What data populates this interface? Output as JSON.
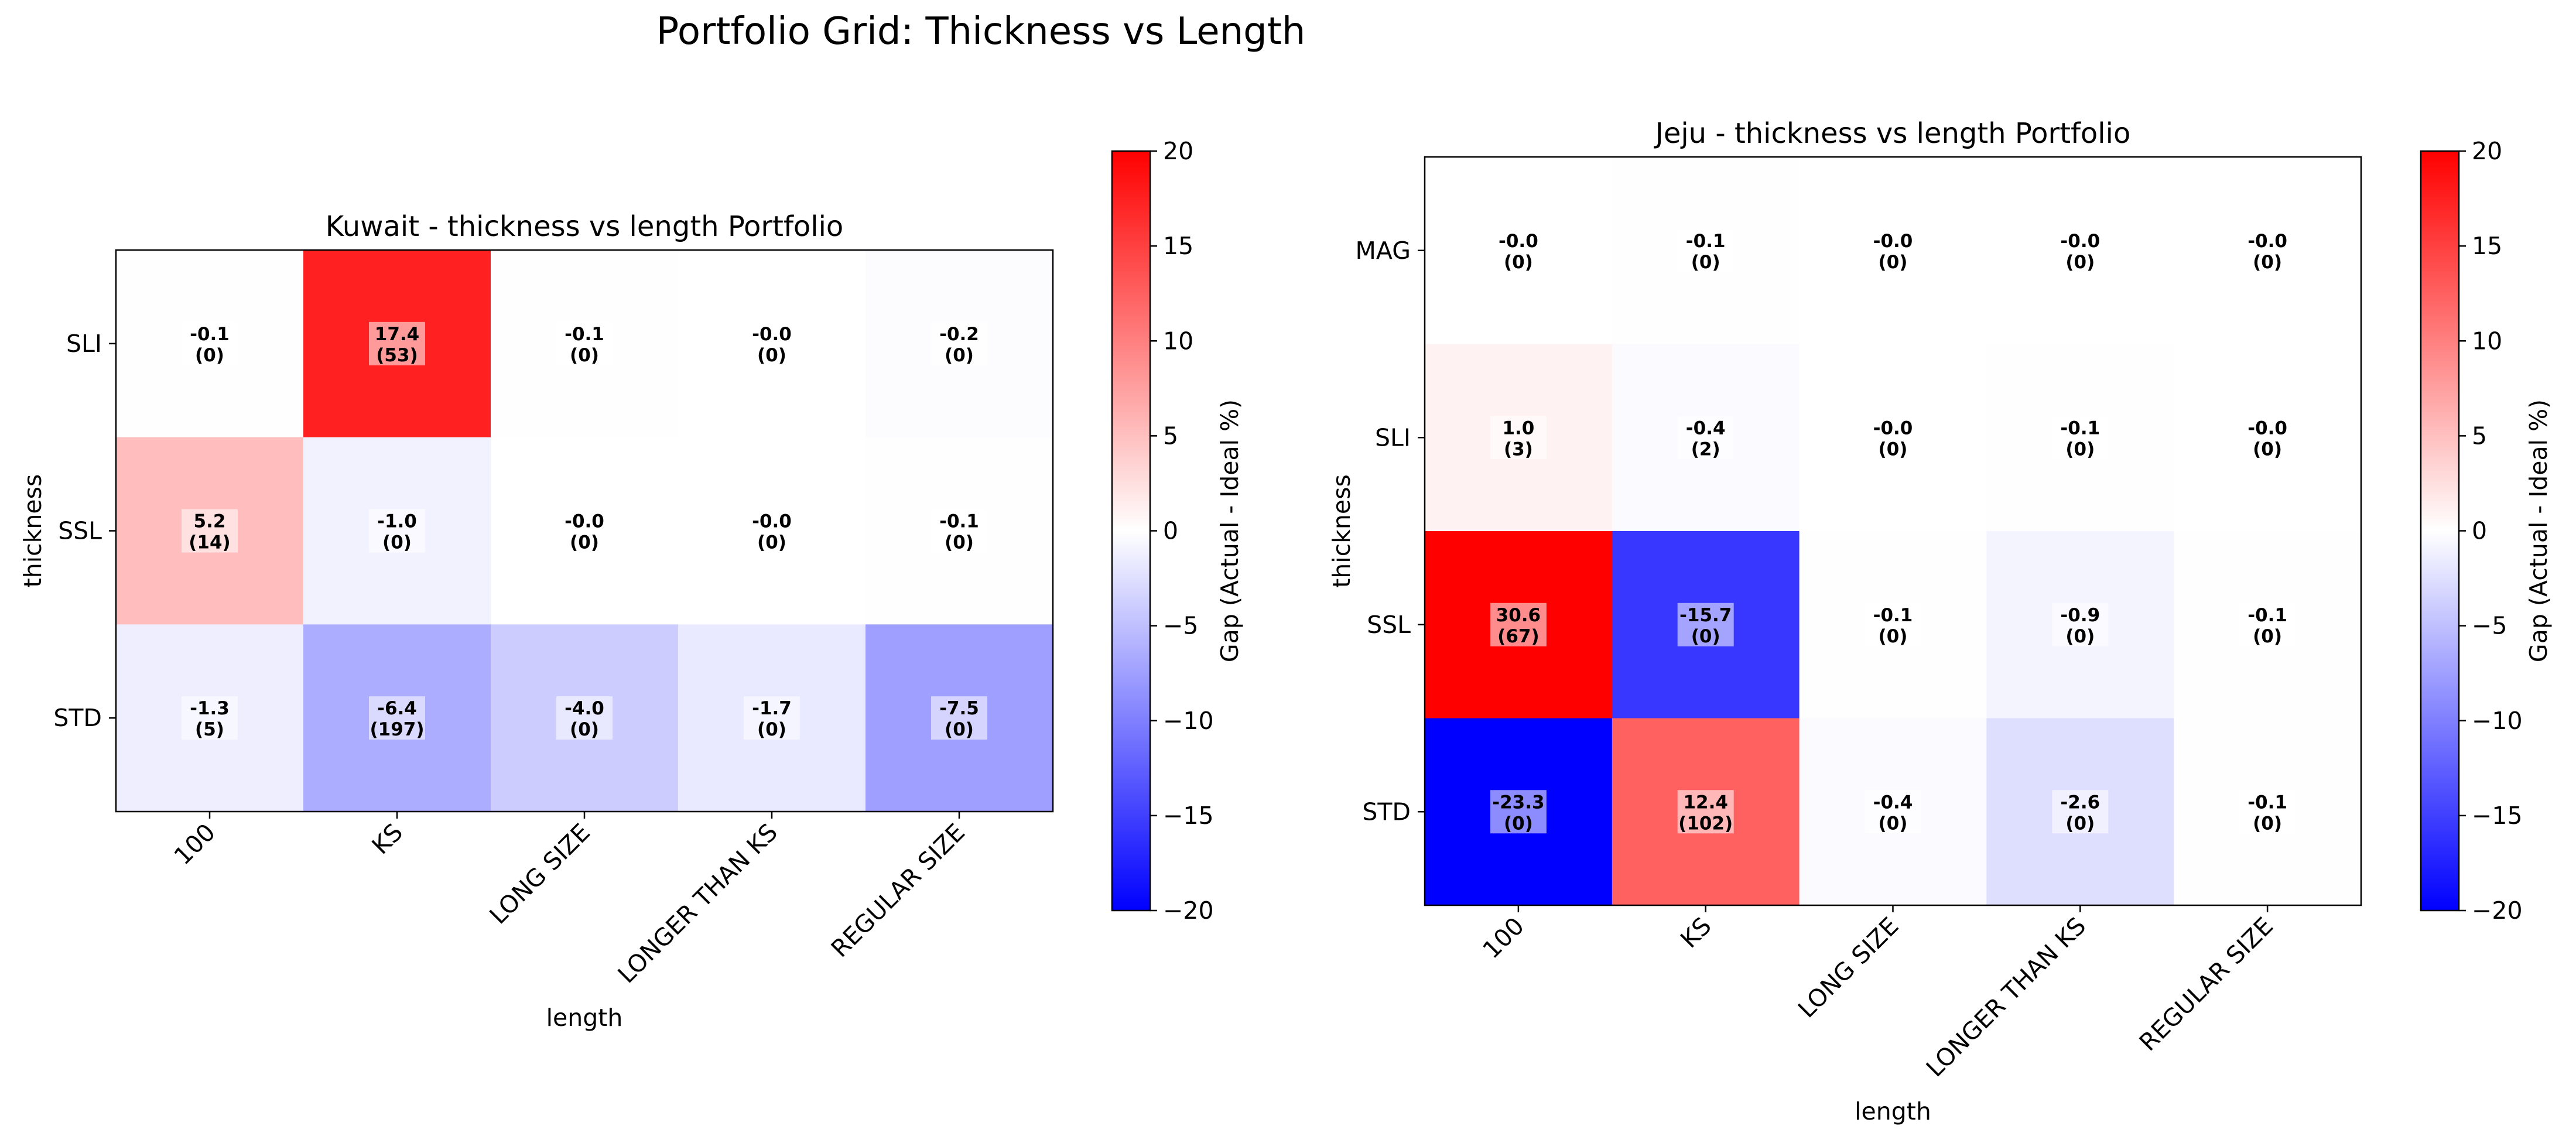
{
  "figure": {
    "title": "Portfolio Grid: Thickness vs Length"
  },
  "chart_data": [
    {
      "type": "heatmap",
      "title": "Kuwait - thickness vs length Portfolio",
      "xlabel": "length",
      "ylabel": "thickness",
      "x_categories": [
        "100",
        "KS",
        "LONG SIZE",
        "LONGER THAN KS",
        "REGULAR SIZE"
      ],
      "y_categories": [
        "SLI",
        "SSL",
        "STD"
      ],
      "gap_values": [
        [
          -0.1,
          17.4,
          -0.1,
          -0.0,
          -0.2
        ],
        [
          5.2,
          -1.0,
          -0.0,
          -0.0,
          -0.1
        ],
        [
          -1.3,
          -6.4,
          -4.0,
          -1.7,
          -7.5
        ]
      ],
      "gap_labels": [
        [
          "-0.1",
          "17.4",
          "-0.1",
          "-0.0",
          "-0.2"
        ],
        [
          "5.2",
          "-1.0",
          "-0.0",
          "-0.0",
          "-0.1"
        ],
        [
          "-1.3",
          "-6.4",
          "-4.0",
          "-1.7",
          "-7.5"
        ]
      ],
      "count_labels": [
        [
          "(0)",
          "(53)",
          "(0)",
          "(0)",
          "(0)"
        ],
        [
          "(14)",
          "(0)",
          "(0)",
          "(0)",
          "(0)"
        ],
        [
          "(5)",
          "(197)",
          "(0)",
          "(0)",
          "(0)"
        ]
      ],
      "colorbar": {
        "label": "Gap (Actual - Ideal %)",
        "range": [
          -20,
          20
        ],
        "ticks": [
          "20",
          "15",
          "10",
          "5",
          "0",
          "−5",
          "−10",
          "−15",
          "−20"
        ],
        "tick_values": [
          20,
          15,
          10,
          5,
          0,
          -5,
          -10,
          -15,
          -20
        ],
        "low_color": "#0000ff",
        "mid_color": "#ffffff",
        "high_color": "#ff0000"
      }
    },
    {
      "type": "heatmap",
      "title": "Jeju - thickness vs length Portfolio",
      "xlabel": "length",
      "ylabel": "thickness",
      "x_categories": [
        "100",
        "KS",
        "LONG SIZE",
        "LONGER THAN KS",
        "REGULAR SIZE"
      ],
      "y_categories": [
        "MAG",
        "SLI",
        "SSL",
        "STD"
      ],
      "gap_values": [
        [
          -0.0,
          -0.1,
          -0.0,
          -0.0,
          -0.0
        ],
        [
          1.0,
          -0.4,
          -0.0,
          -0.1,
          -0.0
        ],
        [
          30.6,
          -15.7,
          -0.1,
          -0.9,
          -0.1
        ],
        [
          -23.3,
          12.4,
          -0.4,
          -2.6,
          -0.1
        ]
      ],
      "gap_labels": [
        [
          "-0.0",
          "-0.1",
          "-0.0",
          "-0.0",
          "-0.0"
        ],
        [
          "1.0",
          "-0.4",
          "-0.0",
          "-0.1",
          "-0.0"
        ],
        [
          "30.6",
          "-15.7",
          "-0.1",
          "-0.9",
          "-0.1"
        ],
        [
          "-23.3",
          "12.4",
          "-0.4",
          "-2.6",
          "-0.1"
        ]
      ],
      "count_labels": [
        [
          "(0)",
          "(0)",
          "(0)",
          "(0)",
          "(0)"
        ],
        [
          "(3)",
          "(2)",
          "(0)",
          "(0)",
          "(0)"
        ],
        [
          "(67)",
          "(0)",
          "(0)",
          "(0)",
          "(0)"
        ],
        [
          "(0)",
          "(102)",
          "(0)",
          "(0)",
          "(0)"
        ]
      ],
      "colorbar": {
        "label": "Gap (Actual - Ideal %)",
        "range": [
          -20,
          20
        ],
        "ticks": [
          "20",
          "15",
          "10",
          "5",
          "0",
          "−5",
          "−10",
          "−15",
          "−20"
        ],
        "tick_values": [
          20,
          15,
          10,
          5,
          0,
          -5,
          -10,
          -15,
          -20
        ],
        "low_color": "#0000ff",
        "mid_color": "#ffffff",
        "high_color": "#ff0000"
      }
    }
  ]
}
